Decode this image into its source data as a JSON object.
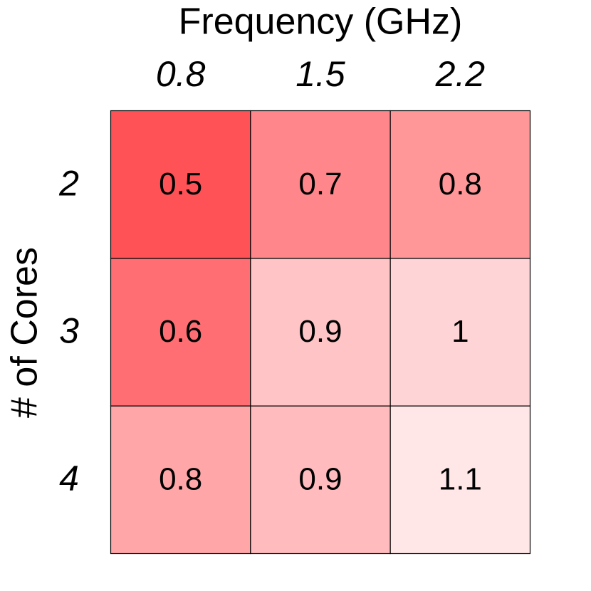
{
  "chart_data": {
    "type": "heatmap",
    "title": "Frequency (GHz)",
    "y_label": "# of Cores",
    "x_categories": [
      "0.8",
      "1.5",
      "2.2"
    ],
    "y_categories": [
      "2",
      "3",
      "4"
    ],
    "values": [
      [
        0.5,
        0.7,
        0.8
      ],
      [
        0.6,
        0.9,
        1
      ],
      [
        0.8,
        0.9,
        1.1
      ]
    ],
    "colors": [
      [
        "#ff5257",
        "#ff868a",
        "#ff9698"
      ],
      [
        "#ff6e72",
        "#ffc4c6",
        "#ffd4d6"
      ],
      [
        "#ffa6a8",
        "#ffbbbd",
        "#ffe6e7"
      ]
    ]
  }
}
